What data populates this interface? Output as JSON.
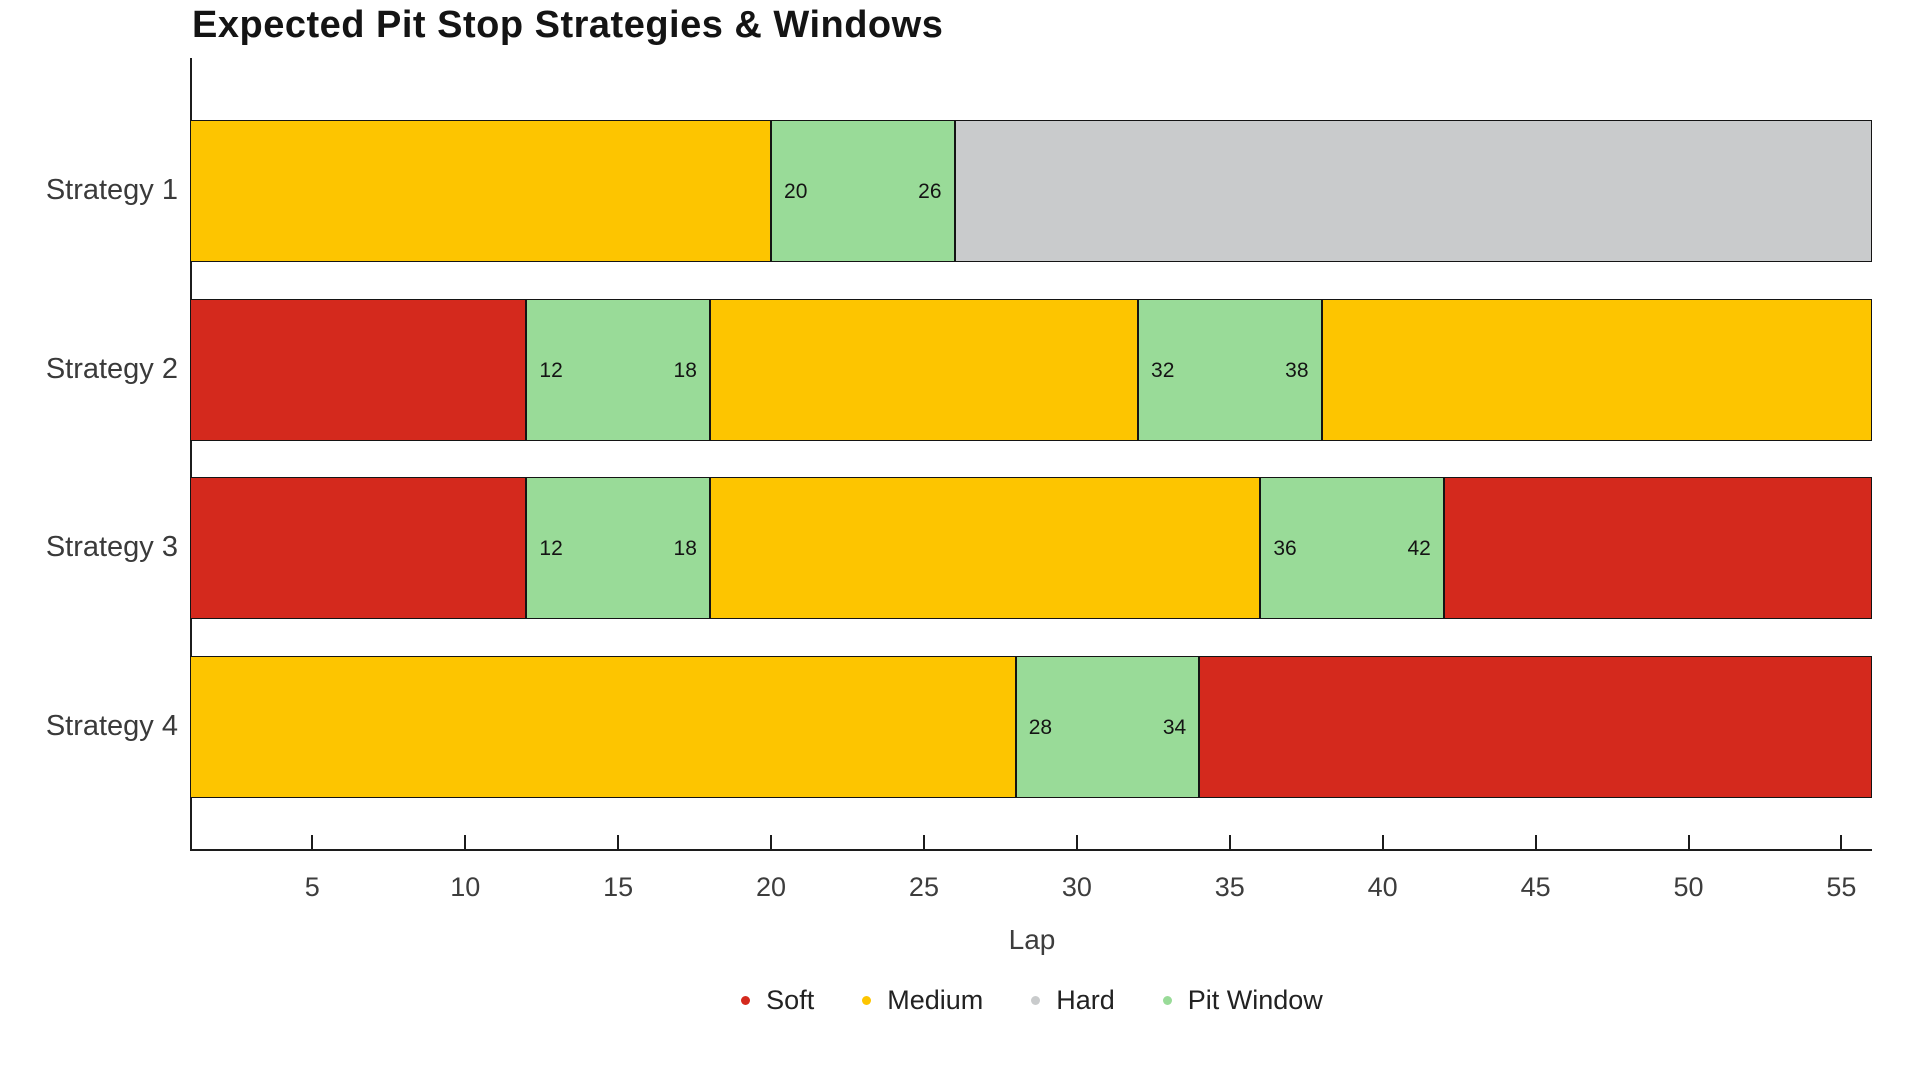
{
  "chart_data": {
    "type": "bar",
    "subtype": "horizontal-stacked-range (race strategy gantt)",
    "title": "Expected Pit Stop Strategies & Windows",
    "xlabel": "Lap",
    "xlim": [
      1,
      56
    ],
    "xticks": [
      5,
      10,
      15,
      20,
      25,
      30,
      35,
      40,
      45,
      50,
      55
    ],
    "grid": false,
    "legend_position": "bottom-center",
    "categories": [
      "Strategy 1",
      "Strategy 2",
      "Strategy 3",
      "Strategy 4"
    ],
    "colors": {
      "Soft": "#d4291d",
      "Medium": "#fdc500",
      "Hard": "#c9cbcc",
      "Pit Window": "#99db98",
      "segment_border": "#141414",
      "axis": "#1c1c1c",
      "text": "#3d3d3d"
    },
    "rows": [
      {
        "label": "Strategy 1",
        "segments": [
          {
            "type": "Medium",
            "start": 1,
            "end": 20
          },
          {
            "type": "Pit Window",
            "start": 20,
            "end": 26,
            "start_label": "20",
            "end_label": "26"
          },
          {
            "type": "Hard",
            "start": 26,
            "end": 56
          }
        ]
      },
      {
        "label": "Strategy 2",
        "segments": [
          {
            "type": "Soft",
            "start": 1,
            "end": 12
          },
          {
            "type": "Pit Window",
            "start": 12,
            "end": 18,
            "start_label": "12",
            "end_label": "18"
          },
          {
            "type": "Medium",
            "start": 18,
            "end": 32
          },
          {
            "type": "Pit Window",
            "start": 32,
            "end": 38,
            "start_label": "32",
            "end_label": "38"
          },
          {
            "type": "Medium",
            "start": 38,
            "end": 56
          }
        ]
      },
      {
        "label": "Strategy 3",
        "segments": [
          {
            "type": "Soft",
            "start": 1,
            "end": 12
          },
          {
            "type": "Pit Window",
            "start": 12,
            "end": 18,
            "start_label": "12",
            "end_label": "18"
          },
          {
            "type": "Medium",
            "start": 18,
            "end": 36
          },
          {
            "type": "Pit Window",
            "start": 36,
            "end": 42,
            "start_label": "36",
            "end_label": "42"
          },
          {
            "type": "Soft",
            "start": 42,
            "end": 56
          }
        ]
      },
      {
        "label": "Strategy 4",
        "segments": [
          {
            "type": "Medium",
            "start": 1,
            "end": 28
          },
          {
            "type": "Pit Window",
            "start": 28,
            "end": 34,
            "start_label": "28",
            "end_label": "34"
          },
          {
            "type": "Soft",
            "start": 34,
            "end": 56
          }
        ]
      }
    ],
    "legend": [
      {
        "label": "Soft",
        "color": "#d4291d"
      },
      {
        "label": "Medium",
        "color": "#fdc500"
      },
      {
        "label": "Hard",
        "color": "#c9cbcc"
      },
      {
        "label": "Pit Window",
        "color": "#99db98"
      }
    ]
  }
}
